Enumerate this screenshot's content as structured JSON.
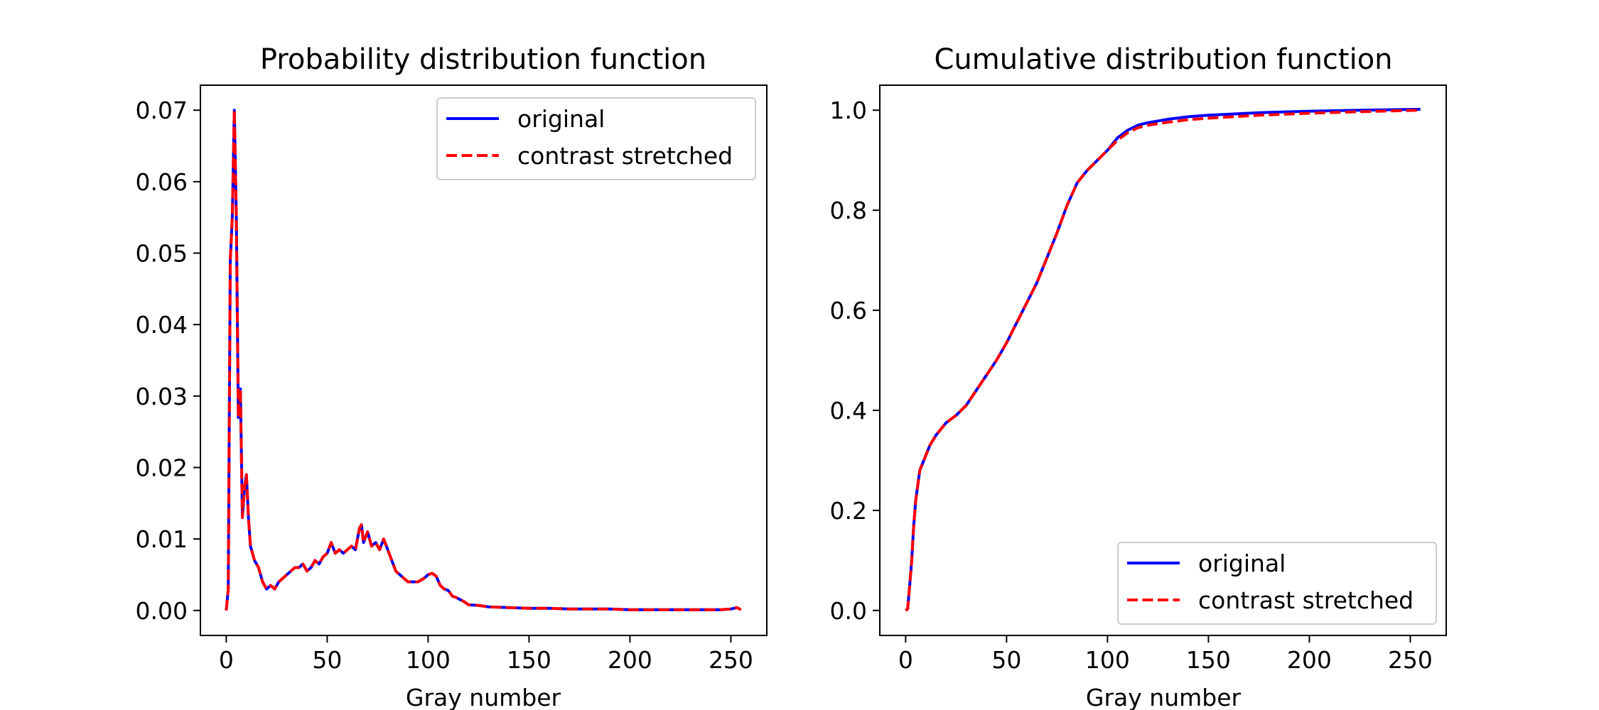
{
  "chart_data": [
    {
      "type": "line",
      "title": "Probability distribution function",
      "xlabel": "Gray number",
      "ylabel": "",
      "xlim": [
        -12.8,
        267.8
      ],
      "ylim": [
        -0.0035,
        0.0735
      ],
      "xticks": [
        0,
        50,
        100,
        150,
        200,
        250
      ],
      "xtick_labels": [
        "0",
        "50",
        "100",
        "150",
        "200",
        "250"
      ],
      "yticks": [
        0.0,
        0.01,
        0.02,
        0.03,
        0.04,
        0.05,
        0.06,
        0.07
      ],
      "ytick_labels": [
        "0.00",
        "0.01",
        "0.02",
        "0.03",
        "0.04",
        "0.05",
        "0.06",
        "0.07"
      ],
      "grid": false,
      "legend": "upper right",
      "series": [
        {
          "name": "original",
          "color": "#0000ff",
          "style": "solid",
          "x": [
            0,
            1,
            2,
            3,
            4,
            5,
            6,
            7,
            8,
            9,
            10,
            11,
            12,
            14,
            16,
            18,
            20,
            22,
            24,
            26,
            28,
            30,
            32,
            34,
            36,
            38,
            40,
            42,
            44,
            46,
            48,
            50,
            52,
            54,
            56,
            58,
            60,
            62,
            64,
            66,
            67,
            68,
            70,
            72,
            74,
            76,
            78,
            80,
            82,
            84,
            86,
            88,
            90,
            92,
            95,
            98,
            100,
            102,
            104,
            106,
            108,
            110,
            112,
            114,
            116,
            118,
            120,
            125,
            130,
            140,
            150,
            160,
            170,
            180,
            190,
            200,
            210,
            220,
            230,
            240,
            245,
            250,
            253,
            255
          ],
          "y": [
            0.0,
            0.003,
            0.049,
            0.055,
            0.07,
            0.055,
            0.027,
            0.031,
            0.013,
            0.017,
            0.019,
            0.013,
            0.009,
            0.007,
            0.006,
            0.004,
            0.003,
            0.0035,
            0.003,
            0.004,
            0.0045,
            0.005,
            0.0055,
            0.006,
            0.006,
            0.0065,
            0.0055,
            0.006,
            0.007,
            0.0065,
            0.0075,
            0.008,
            0.0095,
            0.008,
            0.0085,
            0.008,
            0.0085,
            0.009,
            0.0085,
            0.0115,
            0.012,
            0.0095,
            0.011,
            0.009,
            0.0095,
            0.0085,
            0.01,
            0.0085,
            0.007,
            0.0055,
            0.005,
            0.0045,
            0.004,
            0.004,
            0.004,
            0.0045,
            0.005,
            0.0052,
            0.0048,
            0.0035,
            0.003,
            0.0028,
            0.002,
            0.0018,
            0.0015,
            0.0012,
            0.0008,
            0.0007,
            0.0005,
            0.0004,
            0.0003,
            0.0003,
            0.0002,
            0.0002,
            0.0002,
            0.0001,
            0.0001,
            0.0001,
            0.0001,
            0.0001,
            0.0001,
            0.0002,
            0.0004,
            0.0001
          ]
        },
        {
          "name": "contrast stretched",
          "color": "#ff0000",
          "style": "dashed",
          "x": [
            0,
            1,
            2,
            3,
            4,
            5,
            6,
            7,
            8,
            9,
            10,
            11,
            12,
            14,
            16,
            18,
            20,
            22,
            24,
            26,
            28,
            30,
            32,
            34,
            36,
            38,
            40,
            42,
            44,
            46,
            48,
            50,
            52,
            54,
            56,
            58,
            60,
            62,
            64,
            66,
            67,
            68,
            70,
            72,
            74,
            76,
            78,
            80,
            82,
            84,
            86,
            88,
            90,
            92,
            95,
            98,
            100,
            102,
            104,
            106,
            108,
            110,
            112,
            114,
            116,
            118,
            120,
            125,
            130,
            140,
            150,
            160,
            170,
            180,
            190,
            200,
            210,
            220,
            230,
            240,
            245,
            250,
            253,
            255
          ],
          "y": [
            0.0,
            0.003,
            0.049,
            0.055,
            0.07,
            0.055,
            0.027,
            0.031,
            0.013,
            0.017,
            0.019,
            0.013,
            0.009,
            0.007,
            0.006,
            0.004,
            0.003,
            0.0035,
            0.003,
            0.004,
            0.0045,
            0.005,
            0.0055,
            0.006,
            0.006,
            0.0065,
            0.0055,
            0.006,
            0.007,
            0.0065,
            0.0075,
            0.008,
            0.0095,
            0.008,
            0.0085,
            0.008,
            0.0085,
            0.009,
            0.0085,
            0.0115,
            0.012,
            0.0095,
            0.011,
            0.009,
            0.0095,
            0.0085,
            0.01,
            0.0085,
            0.007,
            0.0055,
            0.005,
            0.0045,
            0.004,
            0.004,
            0.004,
            0.0045,
            0.005,
            0.0052,
            0.0048,
            0.0035,
            0.003,
            0.0028,
            0.002,
            0.0018,
            0.0015,
            0.0012,
            0.0008,
            0.0007,
            0.0005,
            0.0004,
            0.0003,
            0.0003,
            0.0002,
            0.0002,
            0.0002,
            0.0001,
            0.0001,
            0.0001,
            0.0001,
            0.0001,
            0.0001,
            0.0002,
            0.0004,
            0.0001
          ]
        }
      ]
    },
    {
      "type": "line",
      "title": "Cumulative distribution function",
      "xlabel": "Gray number",
      "ylabel": "",
      "xlim": [
        -12.8,
        267.8
      ],
      "ylim": [
        -0.05,
        1.05
      ],
      "xticks": [
        0,
        50,
        100,
        150,
        200,
        250
      ],
      "xtick_labels": [
        "0",
        "50",
        "100",
        "150",
        "200",
        "250"
      ],
      "yticks": [
        0.0,
        0.2,
        0.4,
        0.6,
        0.8,
        1.0
      ],
      "ytick_labels": [
        "0.0",
        "0.2",
        "0.4",
        "0.6",
        "0.8",
        "1.0"
      ],
      "grid": false,
      "legend": "lower right",
      "series": [
        {
          "name": "original",
          "color": "#0000ff",
          "style": "solid",
          "x": [
            0,
            1,
            2,
            3,
            4,
            5,
            6,
            7,
            8,
            10,
            12,
            15,
            18,
            20,
            25,
            30,
            35,
            40,
            45,
            50,
            55,
            60,
            65,
            70,
            75,
            80,
            85,
            90,
            95,
            100,
            105,
            110,
            115,
            120,
            130,
            140,
            150,
            175,
            200,
            225,
            255
          ],
          "y": [
            0.0,
            0.003,
            0.05,
            0.1,
            0.17,
            0.22,
            0.25,
            0.28,
            0.29,
            0.31,
            0.33,
            0.35,
            0.365,
            0.375,
            0.39,
            0.41,
            0.44,
            0.47,
            0.5,
            0.535,
            0.575,
            0.615,
            0.655,
            0.705,
            0.755,
            0.81,
            0.855,
            0.88,
            0.9,
            0.92,
            0.945,
            0.96,
            0.97,
            0.975,
            0.982,
            0.987,
            0.99,
            0.995,
            0.998,
            1.0,
            1.002
          ]
        },
        {
          "name": "contrast stretched",
          "color": "#ff0000",
          "style": "dashed",
          "x": [
            0,
            1,
            2,
            3,
            4,
            5,
            6,
            7,
            8,
            10,
            12,
            15,
            18,
            20,
            25,
            30,
            35,
            40,
            45,
            50,
            55,
            60,
            65,
            70,
            75,
            80,
            85,
            90,
            95,
            100,
            105,
            110,
            115,
            120,
            130,
            140,
            150,
            175,
            200,
            225,
            255
          ],
          "y": [
            0.0,
            0.003,
            0.05,
            0.1,
            0.17,
            0.22,
            0.25,
            0.28,
            0.29,
            0.31,
            0.33,
            0.35,
            0.365,
            0.375,
            0.39,
            0.41,
            0.44,
            0.47,
            0.5,
            0.535,
            0.575,
            0.615,
            0.655,
            0.705,
            0.755,
            0.81,
            0.855,
            0.88,
            0.9,
            0.92,
            0.94,
            0.955,
            0.965,
            0.97,
            0.976,
            0.981,
            0.984,
            0.99,
            0.994,
            0.997,
            1.0
          ]
        }
      ]
    }
  ]
}
